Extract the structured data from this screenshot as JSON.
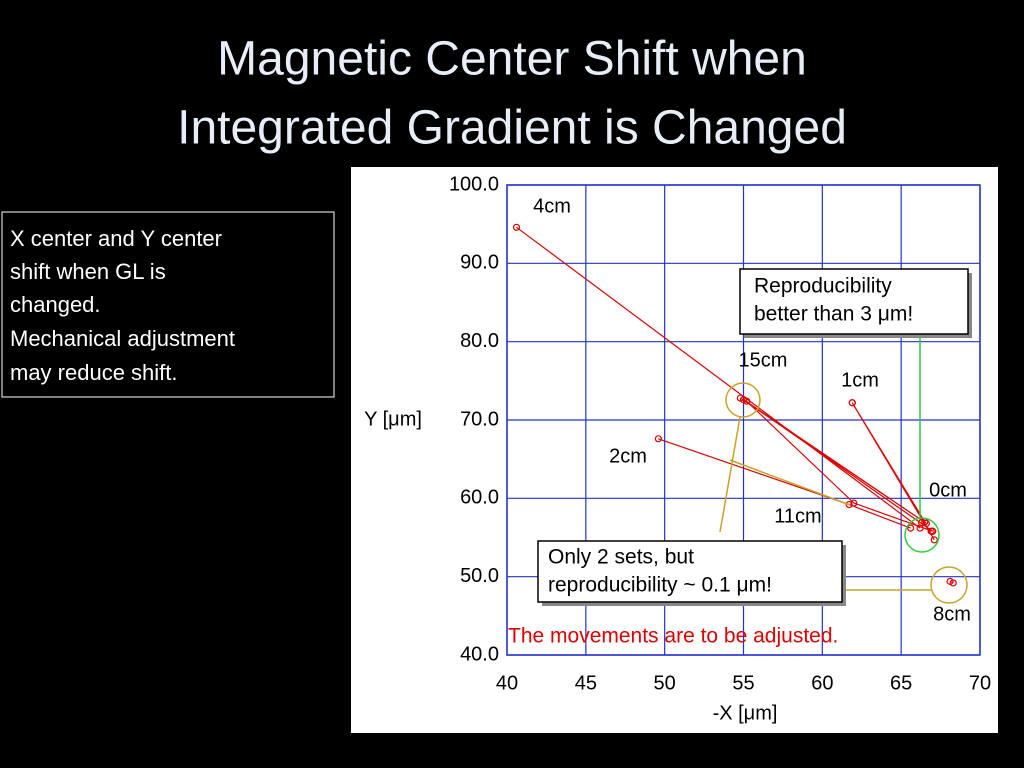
{
  "slide": {
    "title": [
      "Magnetic Center Shift when",
      "Integrated Gradient is Changed"
    ],
    "note": [
      "X center and Y center",
      "shift when GL is",
      "changed.",
      "Mechanical adjustment",
      "may reduce shift."
    ]
  },
  "chart_data": {
    "type": "line",
    "x_label": "-X [μm]",
    "y_label": "Y [μm]",
    "xlim": [
      40,
      70
    ],
    "xticks": [
      40,
      45,
      50,
      55,
      60,
      65,
      70
    ],
    "ylim": [
      40,
      100
    ],
    "yticks": [
      {
        "value": 40,
        "label": "40.0"
      },
      {
        "value": 50,
        "label": "50.0"
      },
      {
        "value": 60,
        "label": "60.0"
      },
      {
        "value": 70,
        "label": "70.0"
      },
      {
        "value": 80,
        "label": "80.0"
      },
      {
        "value": 90,
        "label": "90.0"
      },
      {
        "value": 100,
        "label": "100.0"
      }
    ],
    "grid": true,
    "series": [
      {
        "name": "4cm",
        "color": "#e00000",
        "x": [
          40.6,
          66.2
        ],
        "values": [
          94.6,
          56.2
        ]
      },
      {
        "name": "15cm",
        "color": "#e00000",
        "x": [
          54.8,
          66.6,
          55.0,
          67.0
        ],
        "values": [
          72.8,
          56.8,
          72.6,
          55.8
        ]
      },
      {
        "name": "1cm",
        "color": "#e00000",
        "x": [
          61.9,
          66.5,
          61.9,
          67.1
        ],
        "values": [
          72.2,
          57.0,
          72.2,
          54.7
        ]
      },
      {
        "name": "2cm",
        "color": "#e00000",
        "x": [
          49.6,
          61.7,
          65.6
        ],
        "values": [
          67.6,
          59.2,
          56.2
        ]
      },
      {
        "name": "11cm",
        "color": "#e00000",
        "x": [
          55.2,
          62.0,
          67.0
        ],
        "values": [
          72.4,
          59.4,
          55.8
        ]
      },
      {
        "name": "0cm",
        "color": "#e00000",
        "x": [
          66.3,
          66.9
        ],
        "values": [
          56.9,
          55.8
        ]
      },
      {
        "name": "8cm",
        "color": "#e00000",
        "x": [
          68.1,
          68.3
        ],
        "values": [
          49.4,
          49.2
        ]
      }
    ],
    "annotations": [
      [
        "Reproducibility",
        "better than 3 μm!"
      ],
      [
        "Only 2 sets, but",
        "reproducibility ~ 0.1 μm!"
      ],
      [
        "The movements are to be adjusted."
      ]
    ]
  }
}
